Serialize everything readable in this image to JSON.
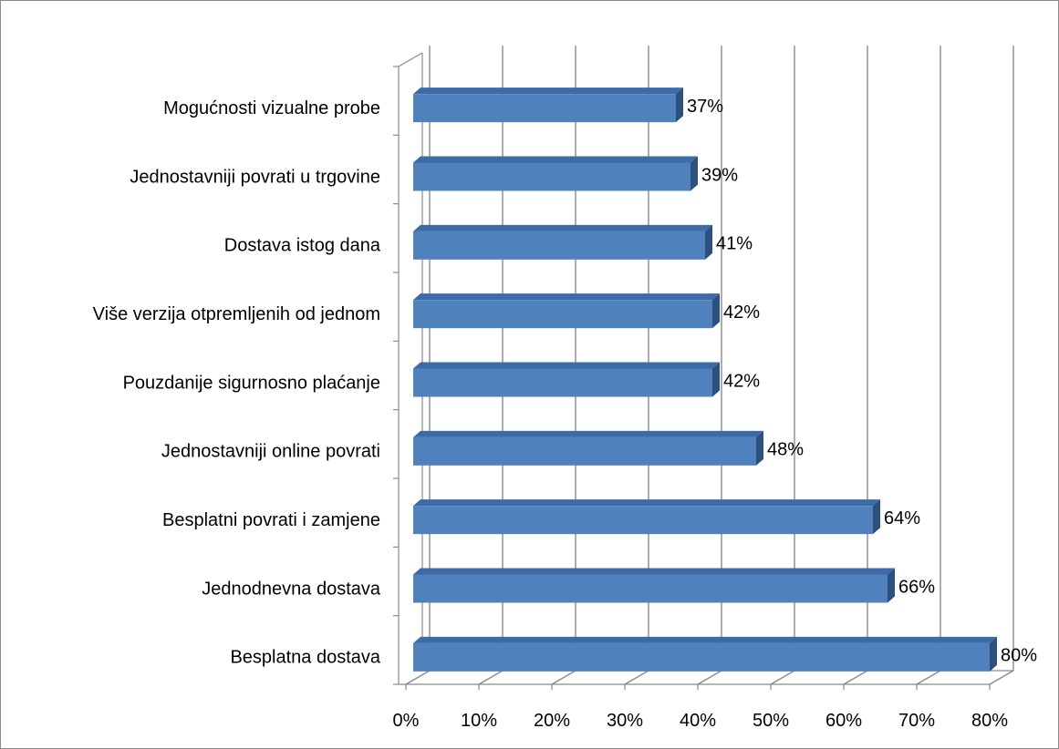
{
  "chart_data": {
    "type": "bar",
    "orientation": "horizontal",
    "style": "3d-clustered",
    "categories": [
      "Mogućnosti vizualne probe",
      "Jednostavniji povrati u trgovine",
      "Dostava istog dana",
      "Više verzija otpremljenih od jednom",
      "Pouzdanije sigurnosno plaćanje",
      "Jednostavniji online povrati",
      "Besplatni povrati i zamjene",
      "Jednodnevna dostava",
      "Besplatna dostava"
    ],
    "values": [
      37,
      39,
      41,
      42,
      42,
      48,
      64,
      66,
      80
    ],
    "value_labels": [
      "37%",
      "39%",
      "41%",
      "42%",
      "42%",
      "48%",
      "64%",
      "66%",
      "80%"
    ],
    "x_ticks": [
      "0%",
      "10%",
      "20%",
      "30%",
      "40%",
      "50%",
      "60%",
      "70%",
      "80%"
    ],
    "xlim": [
      0,
      80
    ],
    "grid": "vertical",
    "legend": "none",
    "colors": {
      "bar_front": "#4f81bd",
      "bar_top": "#3d6ba7",
      "bar_side": "#2c4f7e",
      "gridline": "#8a8a8a"
    }
  }
}
